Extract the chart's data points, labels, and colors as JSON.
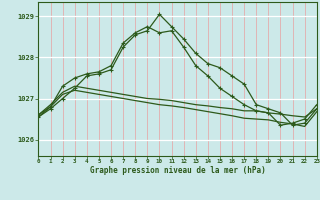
{
  "title": "Graphe pression niveau de la mer (hPa)",
  "bg_color": "#cce9e9",
  "line_color": "#2d5a1b",
  "xlim": [
    0,
    23
  ],
  "ylim": [
    1025.6,
    1029.35
  ],
  "yticks": [
    1026,
    1027,
    1028,
    1029
  ],
  "xticks": [
    0,
    1,
    2,
    3,
    4,
    5,
    6,
    7,
    8,
    9,
    10,
    11,
    12,
    13,
    14,
    15,
    16,
    17,
    18,
    19,
    20,
    21,
    22,
    23
  ],
  "series1_x": [
    0,
    1,
    2,
    3,
    4,
    5,
    6,
    7,
    8,
    9,
    10,
    11,
    12,
    13,
    14,
    15,
    16,
    17,
    18,
    19,
    20,
    21,
    22,
    23
  ],
  "series1_y": [
    1026.55,
    1026.75,
    1027.0,
    1027.25,
    1027.55,
    1027.6,
    1027.7,
    1028.25,
    1028.55,
    1028.65,
    1029.05,
    1028.75,
    1028.45,
    1028.1,
    1027.85,
    1027.75,
    1027.55,
    1027.35,
    1026.85,
    1026.75,
    1026.65,
    1026.35,
    1026.4,
    1026.75
  ],
  "series2_x": [
    0,
    1,
    2,
    3,
    4,
    5,
    6,
    7,
    8,
    9,
    10,
    11,
    12,
    13,
    14,
    15,
    16,
    17,
    18,
    19,
    20,
    21,
    22,
    23
  ],
  "series2_y": [
    1026.6,
    1026.8,
    1027.3,
    1027.5,
    1027.6,
    1027.65,
    1027.8,
    1028.35,
    1028.6,
    1028.75,
    1028.6,
    1028.65,
    1028.25,
    1027.8,
    1027.55,
    1027.25,
    1027.05,
    1026.85,
    1026.7,
    1026.65,
    1026.35,
    1026.4,
    1026.5,
    1026.85
  ],
  "series3_x": [
    0,
    1,
    2,
    3,
    4,
    5,
    6,
    7,
    8,
    9,
    10,
    11,
    12,
    13,
    14,
    15,
    16,
    17,
    18,
    19,
    20,
    21,
    22,
    23
  ],
  "series3_y": [
    1026.6,
    1026.85,
    1027.15,
    1027.3,
    1027.25,
    1027.2,
    1027.15,
    1027.1,
    1027.05,
    1027.0,
    1026.98,
    1026.95,
    1026.9,
    1026.85,
    1026.82,
    1026.78,
    1026.75,
    1026.7,
    1026.7,
    1026.65,
    1026.62,
    1026.58,
    1026.55,
    1026.75
  ],
  "series4_x": [
    0,
    1,
    2,
    3,
    4,
    5,
    6,
    7,
    8,
    9,
    10,
    11,
    12,
    13,
    14,
    15,
    16,
    17,
    18,
    19,
    20,
    21,
    22,
    23
  ],
  "series4_y": [
    1026.55,
    1026.8,
    1027.1,
    1027.2,
    1027.15,
    1027.1,
    1027.05,
    1027.0,
    1026.95,
    1026.9,
    1026.85,
    1026.82,
    1026.78,
    1026.73,
    1026.68,
    1026.63,
    1026.58,
    1026.52,
    1026.5,
    1026.48,
    1026.42,
    1026.38,
    1026.32,
    1026.68
  ]
}
